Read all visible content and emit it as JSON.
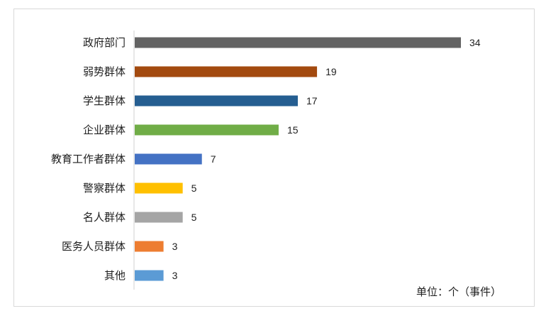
{
  "chart_data": {
    "type": "bar",
    "orientation": "horizontal",
    "categories": [
      "政府部门",
      "弱势群体",
      "学生群体",
      "企业群体",
      "教育工作者群体",
      "警察群体",
      "名人群体",
      "医务人员群体",
      "其他"
    ],
    "values": [
      34,
      19,
      17,
      15,
      7,
      5,
      5,
      3,
      3
    ],
    "colors": [
      "#636363",
      "#a34a0f",
      "#255e91",
      "#70ad47",
      "#4472c4",
      "#ffc000",
      "#a5a5a5",
      "#ed7d31",
      "#5b9bd5"
    ],
    "data_labels": true,
    "grid": false,
    "legend": "none",
    "unit_note": "单位：个（事件）"
  }
}
